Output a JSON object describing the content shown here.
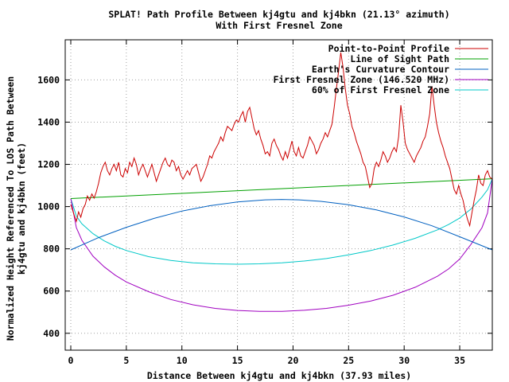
{
  "chart_data": {
    "type": "line",
    "title": "SPLAT! Path Profile Between kj4gtu and kj4bkn (21.13° azimuth)",
    "subtitle": "With First Fresnel Zone",
    "xlabel": "Distance Between kj4gtu and kj4bkn (37.93 miles)",
    "ylabel_line1": "Normalized Height Referenced To LOS Path Between",
    "ylabel_line2": "kj4gtu and kj4bkn (feet)",
    "xlim": [
      -0.5,
      37.93
    ],
    "ylim": [
      320,
      1790
    ],
    "x_ticks": [
      "0",
      "5",
      "10",
      "15",
      "20",
      "25",
      "30",
      "35"
    ],
    "y_ticks": [
      "400",
      "600",
      "800",
      "1000",
      "1200",
      "1400",
      "1600"
    ],
    "grid": true,
    "legend_position": "top-right",
    "series": [
      {
        "name": "Point-to-Point Profile",
        "color": "#cc0000",
        "points": [
          [
            0,
            1010
          ],
          [
            0.3,
            960
          ],
          [
            0.5,
            930
          ],
          [
            0.7,
            975
          ],
          [
            0.9,
            950
          ],
          [
            1.1,
            990
          ],
          [
            1.3,
            1010
          ],
          [
            1.5,
            1050
          ],
          [
            1.7,
            1030
          ],
          [
            1.9,
            1060
          ],
          [
            2.1,
            1040
          ],
          [
            2.3,
            1070
          ],
          [
            2.5,
            1110
          ],
          [
            2.7,
            1160
          ],
          [
            2.9,
            1190
          ],
          [
            3.1,
            1210
          ],
          [
            3.3,
            1170
          ],
          [
            3.5,
            1150
          ],
          [
            3.7,
            1180
          ],
          [
            3.9,
            1200
          ],
          [
            4.1,
            1170
          ],
          [
            4.3,
            1210
          ],
          [
            4.5,
            1150
          ],
          [
            4.7,
            1140
          ],
          [
            4.9,
            1180
          ],
          [
            5.1,
            1160
          ],
          [
            5.3,
            1210
          ],
          [
            5.5,
            1190
          ],
          [
            5.7,
            1230
          ],
          [
            5.9,
            1200
          ],
          [
            6.1,
            1150
          ],
          [
            6.3,
            1180
          ],
          [
            6.5,
            1200
          ],
          [
            6.7,
            1170
          ],
          [
            6.9,
            1140
          ],
          [
            7.1,
            1170
          ],
          [
            7.3,
            1200
          ],
          [
            7.5,
            1160
          ],
          [
            7.7,
            1120
          ],
          [
            7.9,
            1150
          ],
          [
            8.1,
            1180
          ],
          [
            8.3,
            1210
          ],
          [
            8.5,
            1230
          ],
          [
            8.7,
            1200
          ],
          [
            8.9,
            1190
          ],
          [
            9.1,
            1220
          ],
          [
            9.3,
            1210
          ],
          [
            9.5,
            1170
          ],
          [
            9.7,
            1190
          ],
          [
            9.9,
            1150
          ],
          [
            10.1,
            1130
          ],
          [
            10.3,
            1150
          ],
          [
            10.5,
            1170
          ],
          [
            10.7,
            1150
          ],
          [
            10.9,
            1180
          ],
          [
            11.1,
            1190
          ],
          [
            11.3,
            1200
          ],
          [
            11.5,
            1160
          ],
          [
            11.7,
            1120
          ],
          [
            11.9,
            1140
          ],
          [
            12.1,
            1170
          ],
          [
            12.3,
            1200
          ],
          [
            12.5,
            1240
          ],
          [
            12.7,
            1230
          ],
          [
            12.9,
            1260
          ],
          [
            13.1,
            1280
          ],
          [
            13.3,
            1300
          ],
          [
            13.5,
            1330
          ],
          [
            13.7,
            1310
          ],
          [
            13.9,
            1350
          ],
          [
            14.1,
            1380
          ],
          [
            14.3,
            1370
          ],
          [
            14.5,
            1360
          ],
          [
            14.7,
            1390
          ],
          [
            14.9,
            1410
          ],
          [
            15.1,
            1400
          ],
          [
            15.3,
            1430
          ],
          [
            15.5,
            1450
          ],
          [
            15.7,
            1400
          ],
          [
            15.9,
            1450
          ],
          [
            16.1,
            1470
          ],
          [
            16.3,
            1420
          ],
          [
            16.5,
            1370
          ],
          [
            16.7,
            1340
          ],
          [
            16.9,
            1360
          ],
          [
            17.1,
            1320
          ],
          [
            17.3,
            1290
          ],
          [
            17.5,
            1250
          ],
          [
            17.7,
            1260
          ],
          [
            17.9,
            1240
          ],
          [
            18.1,
            1300
          ],
          [
            18.3,
            1320
          ],
          [
            18.5,
            1290
          ],
          [
            18.7,
            1270
          ],
          [
            18.9,
            1240
          ],
          [
            19.1,
            1220
          ],
          [
            19.3,
            1260
          ],
          [
            19.5,
            1230
          ],
          [
            19.7,
            1270
          ],
          [
            19.9,
            1310
          ],
          [
            20.1,
            1260
          ],
          [
            20.3,
            1240
          ],
          [
            20.5,
            1280
          ],
          [
            20.7,
            1240
          ],
          [
            20.9,
            1230
          ],
          [
            21.1,
            1260
          ],
          [
            21.3,
            1290
          ],
          [
            21.5,
            1330
          ],
          [
            21.7,
            1310
          ],
          [
            21.9,
            1290
          ],
          [
            22.1,
            1250
          ],
          [
            22.3,
            1270
          ],
          [
            22.5,
            1300
          ],
          [
            22.7,
            1320
          ],
          [
            22.9,
            1350
          ],
          [
            23.1,
            1330
          ],
          [
            23.3,
            1360
          ],
          [
            23.5,
            1390
          ],
          [
            23.7,
            1470
          ],
          [
            23.9,
            1560
          ],
          [
            24.1,
            1640
          ],
          [
            24.3,
            1730
          ],
          [
            24.5,
            1660
          ],
          [
            24.7,
            1560
          ],
          [
            24.9,
            1480
          ],
          [
            25.1,
            1440
          ],
          [
            25.3,
            1380
          ],
          [
            25.5,
            1350
          ],
          [
            25.7,
            1310
          ],
          [
            25.9,
            1280
          ],
          [
            26.1,
            1250
          ],
          [
            26.3,
            1210
          ],
          [
            26.5,
            1190
          ],
          [
            26.7,
            1140
          ],
          [
            26.9,
            1090
          ],
          [
            27.1,
            1110
          ],
          [
            27.3,
            1180
          ],
          [
            27.5,
            1210
          ],
          [
            27.7,
            1190
          ],
          [
            27.9,
            1220
          ],
          [
            28.1,
            1260
          ],
          [
            28.3,
            1240
          ],
          [
            28.5,
            1210
          ],
          [
            28.7,
            1230
          ],
          [
            28.9,
            1260
          ],
          [
            29.1,
            1280
          ],
          [
            29.3,
            1260
          ],
          [
            29.5,
            1330
          ],
          [
            29.7,
            1480
          ],
          [
            29.9,
            1400
          ],
          [
            30.1,
            1300
          ],
          [
            30.3,
            1270
          ],
          [
            30.5,
            1250
          ],
          [
            30.7,
            1230
          ],
          [
            30.9,
            1210
          ],
          [
            31.1,
            1240
          ],
          [
            31.3,
            1260
          ],
          [
            31.5,
            1280
          ],
          [
            31.7,
            1310
          ],
          [
            31.9,
            1330
          ],
          [
            32.1,
            1380
          ],
          [
            32.3,
            1440
          ],
          [
            32.5,
            1570
          ],
          [
            32.7,
            1480
          ],
          [
            32.9,
            1400
          ],
          [
            33.1,
            1350
          ],
          [
            33.3,
            1310
          ],
          [
            33.5,
            1280
          ],
          [
            33.7,
            1240
          ],
          [
            33.9,
            1210
          ],
          [
            34.1,
            1180
          ],
          [
            34.3,
            1130
          ],
          [
            34.5,
            1080
          ],
          [
            34.7,
            1060
          ],
          [
            34.9,
            1100
          ],
          [
            35.1,
            1060
          ],
          [
            35.3,
            1030
          ],
          [
            35.5,
            980
          ],
          [
            35.7,
            940
          ],
          [
            35.9,
            910
          ],
          [
            36.1,
            970
          ],
          [
            36.3,
            1030
          ],
          [
            36.5,
            1080
          ],
          [
            36.7,
            1150
          ],
          [
            36.9,
            1110
          ],
          [
            37.1,
            1100
          ],
          [
            37.3,
            1150
          ],
          [
            37.5,
            1170
          ],
          [
            37.7,
            1140
          ],
          [
            37.93,
            1130
          ]
        ]
      },
      {
        "name": "Line of Sight Path",
        "color": "#00a000",
        "points": [
          [
            0,
            1038
          ],
          [
            37.93,
            1132
          ]
        ]
      },
      {
        "name": "Earth's Curvature Contour",
        "color": "#0060c0",
        "points": [
          [
            0,
            795
          ],
          [
            2.5,
            853
          ],
          [
            5,
            902
          ],
          [
            7.5,
            944
          ],
          [
            10,
            979
          ],
          [
            12.5,
            1004
          ],
          [
            15,
            1022
          ],
          [
            17.5,
            1032
          ],
          [
            18.97,
            1034
          ],
          [
            20.5,
            1032
          ],
          [
            22.5,
            1025
          ],
          [
            25,
            1009
          ],
          [
            27.5,
            984
          ],
          [
            30,
            951
          ],
          [
            32.5,
            909
          ],
          [
            35,
            857
          ],
          [
            37.93,
            795
          ]
        ]
      },
      {
        "name": "First Fresnel Zone (146.520 MHz)",
        "color": "#a000c0",
        "points": [
          [
            0,
            1038
          ],
          [
            0.5,
            900
          ],
          [
            1,
            840
          ],
          [
            2,
            765
          ],
          [
            3,
            715
          ],
          [
            4,
            675
          ],
          [
            5,
            643
          ],
          [
            7,
            597
          ],
          [
            9,
            560
          ],
          [
            11,
            535
          ],
          [
            13,
            518
          ],
          [
            15,
            508
          ],
          [
            17,
            504
          ],
          [
            19,
            504
          ],
          [
            21,
            509
          ],
          [
            23,
            518
          ],
          [
            25,
            533
          ],
          [
            27,
            553
          ],
          [
            29,
            580
          ],
          [
            31,
            618
          ],
          [
            33,
            670
          ],
          [
            34,
            705
          ],
          [
            35,
            752
          ],
          [
            36,
            820
          ],
          [
            37,
            900
          ],
          [
            37.5,
            970
          ],
          [
            37.93,
            1132
          ]
        ]
      },
      {
        "name": "60% of First Fresnel Zone",
        "color": "#00c8c8",
        "points": [
          [
            0,
            1038
          ],
          [
            0.5,
            955
          ],
          [
            1,
            918
          ],
          [
            2,
            872
          ],
          [
            3,
            838
          ],
          [
            4,
            812
          ],
          [
            5,
            792
          ],
          [
            7,
            763
          ],
          [
            9,
            745
          ],
          [
            11,
            734
          ],
          [
            13,
            729
          ],
          [
            15,
            727
          ],
          [
            17,
            729
          ],
          [
            19,
            734
          ],
          [
            21,
            742
          ],
          [
            23,
            754
          ],
          [
            25,
            771
          ],
          [
            27,
            792
          ],
          [
            29,
            818
          ],
          [
            31,
            850
          ],
          [
            33,
            890
          ],
          [
            34,
            915
          ],
          [
            35,
            946
          ],
          [
            36,
            988
          ],
          [
            37,
            1045
          ],
          [
            37.5,
            1080
          ],
          [
            37.93,
            1132
          ]
        ]
      }
    ]
  }
}
